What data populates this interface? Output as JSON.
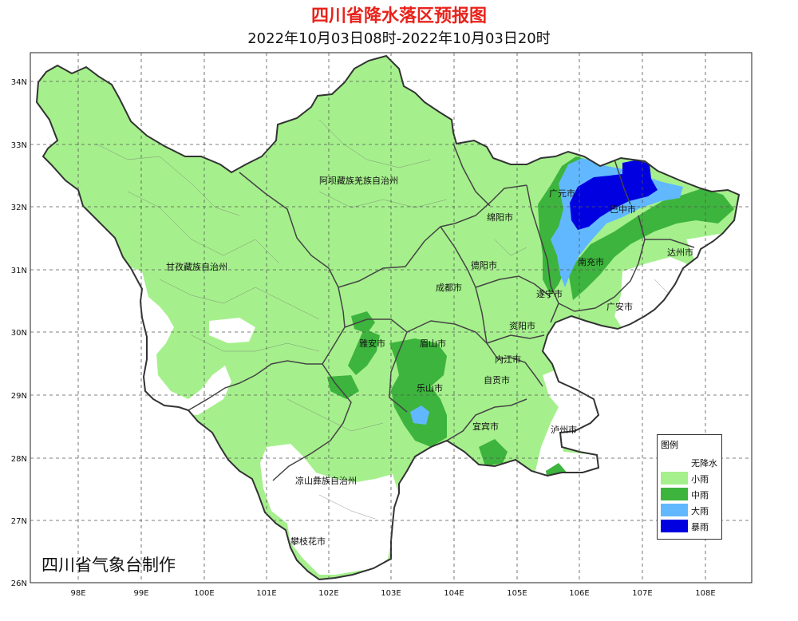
{
  "header": {
    "title": "四川省降水落区预报图",
    "subtitle": "2022年10月03日08时-2022年10月03日20时"
  },
  "axes": {
    "lon_labels": [
      "98E",
      "99E",
      "100E",
      "101E",
      "102E",
      "103E",
      "104E",
      "105E",
      "106E",
      "107E",
      "108E"
    ],
    "lat_labels": [
      "34N",
      "33N",
      "32N",
      "31N",
      "30N",
      "29N",
      "28N",
      "27N",
      "26N"
    ]
  },
  "cities": [
    {
      "id": "aba",
      "name": "阿坝藏族羌族自治州"
    },
    {
      "id": "ganzi",
      "name": "甘孜藏族自治州"
    },
    {
      "id": "liangshan",
      "name": "凉山彝族自治州"
    },
    {
      "id": "panzhihua",
      "name": "攀枝花市"
    },
    {
      "id": "guangyuan",
      "name": "广元市"
    },
    {
      "id": "bazhong",
      "name": "巴中市"
    },
    {
      "id": "mianyang",
      "name": "绵阳市"
    },
    {
      "id": "dazhou",
      "name": "达州市"
    },
    {
      "id": "deyang",
      "name": "德阳市"
    },
    {
      "id": "nanchong",
      "name": "南充市"
    },
    {
      "id": "chengdu",
      "name": "成都市"
    },
    {
      "id": "suining",
      "name": "遂宁市"
    },
    {
      "id": "guangan",
      "name": "广安市"
    },
    {
      "id": "yaan",
      "name": "雅安市"
    },
    {
      "id": "meishan",
      "name": "眉山市"
    },
    {
      "id": "ziyang",
      "name": "资阳市"
    },
    {
      "id": "neijiang",
      "name": "内江市"
    },
    {
      "id": "zigong",
      "name": "自贡市"
    },
    {
      "id": "leshan",
      "name": "乐山市"
    },
    {
      "id": "yibin",
      "name": "宜宾市"
    },
    {
      "id": "luzhou",
      "name": "泸州市"
    }
  ],
  "legend": {
    "title": "图例",
    "items": [
      {
        "label": "无降水",
        "color": "#ffffff"
      },
      {
        "label": "小雨",
        "color": "#a5f08c"
      },
      {
        "label": "中雨",
        "color": "#3db43d"
      },
      {
        "label": "大雨",
        "color": "#62b8ff"
      },
      {
        "label": "暴雨",
        "color": "#0000e0"
      }
    ]
  },
  "credit": "四川省气象台制作"
}
